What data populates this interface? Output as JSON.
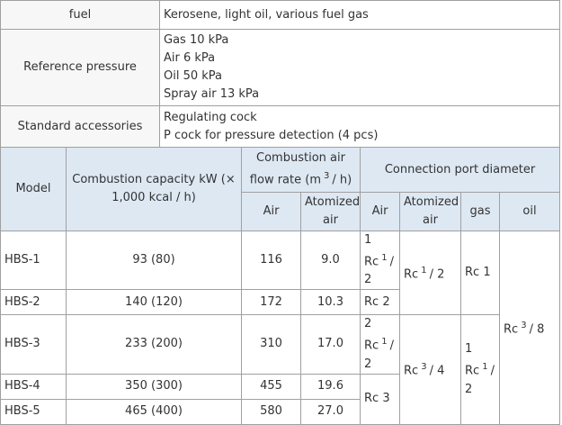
{
  "specs": [
    {
      "label": "fuel",
      "lines": [
        "Kerosene, light oil, various fuel gas"
      ]
    },
    {
      "label": "Reference pressure",
      "lines": [
        "Gas 10 kPa",
        "Air 6 kPa",
        "Oil 50 kPa",
        "Spray air 13 kPa"
      ]
    },
    {
      "label": "Standard accessories",
      "lines": [
        "Regulating cock",
        "P cock for pressure detection (4 pcs)"
      ]
    }
  ],
  "table": {
    "header": {
      "model": "Model",
      "capacity": "Combustion capacity kW (× 1,000 kcal / h)",
      "airflow": {
        "base": "Combustion air flow rate (m",
        "sup": "3",
        "rest": "/ h)"
      },
      "air": "Air",
      "atomized": "Atomized air",
      "port": "Connection port diameter",
      "port_air": "Air",
      "port_atomized": "Atomized air",
      "gas": "gas",
      "oil": "oil"
    },
    "rows": [
      [
        "HBS-1",
        "93 (80)",
        "116",
        "9.0"
      ],
      [
        "HBS-2",
        "140 (120)",
        "172",
        "10.3"
      ],
      [
        "HBS-3",
        "233 (200)",
        "310",
        "17.0"
      ],
      [
        "HBS-4",
        "350 (300)",
        "455",
        "19.6"
      ],
      [
        "HBS-5",
        "465 (400)",
        "580",
        "27.0"
      ]
    ],
    "ports": {
      "air": [
        {
          "base": "1 Rc",
          "sup": "1",
          "rest": "/ 2"
        },
        "Rc 2",
        {
          "base": "2 Rc",
          "sup": "1",
          "rest": "/ 2"
        },
        "Rc 3"
      ],
      "atomized": [
        {
          "base": "Rc",
          "sup": "1",
          "rest": "/ 2"
        },
        {
          "base": "Rc",
          "sup": "3",
          "rest": "/ 4"
        }
      ],
      "gas": [
        "Rc 1",
        {
          "base": "1 Rc",
          "sup": "1",
          "rest": "/ 2"
        }
      ],
      "oil": {
        "base": "Rc",
        "sup": "3",
        "rest": "/ 8"
      }
    }
  }
}
